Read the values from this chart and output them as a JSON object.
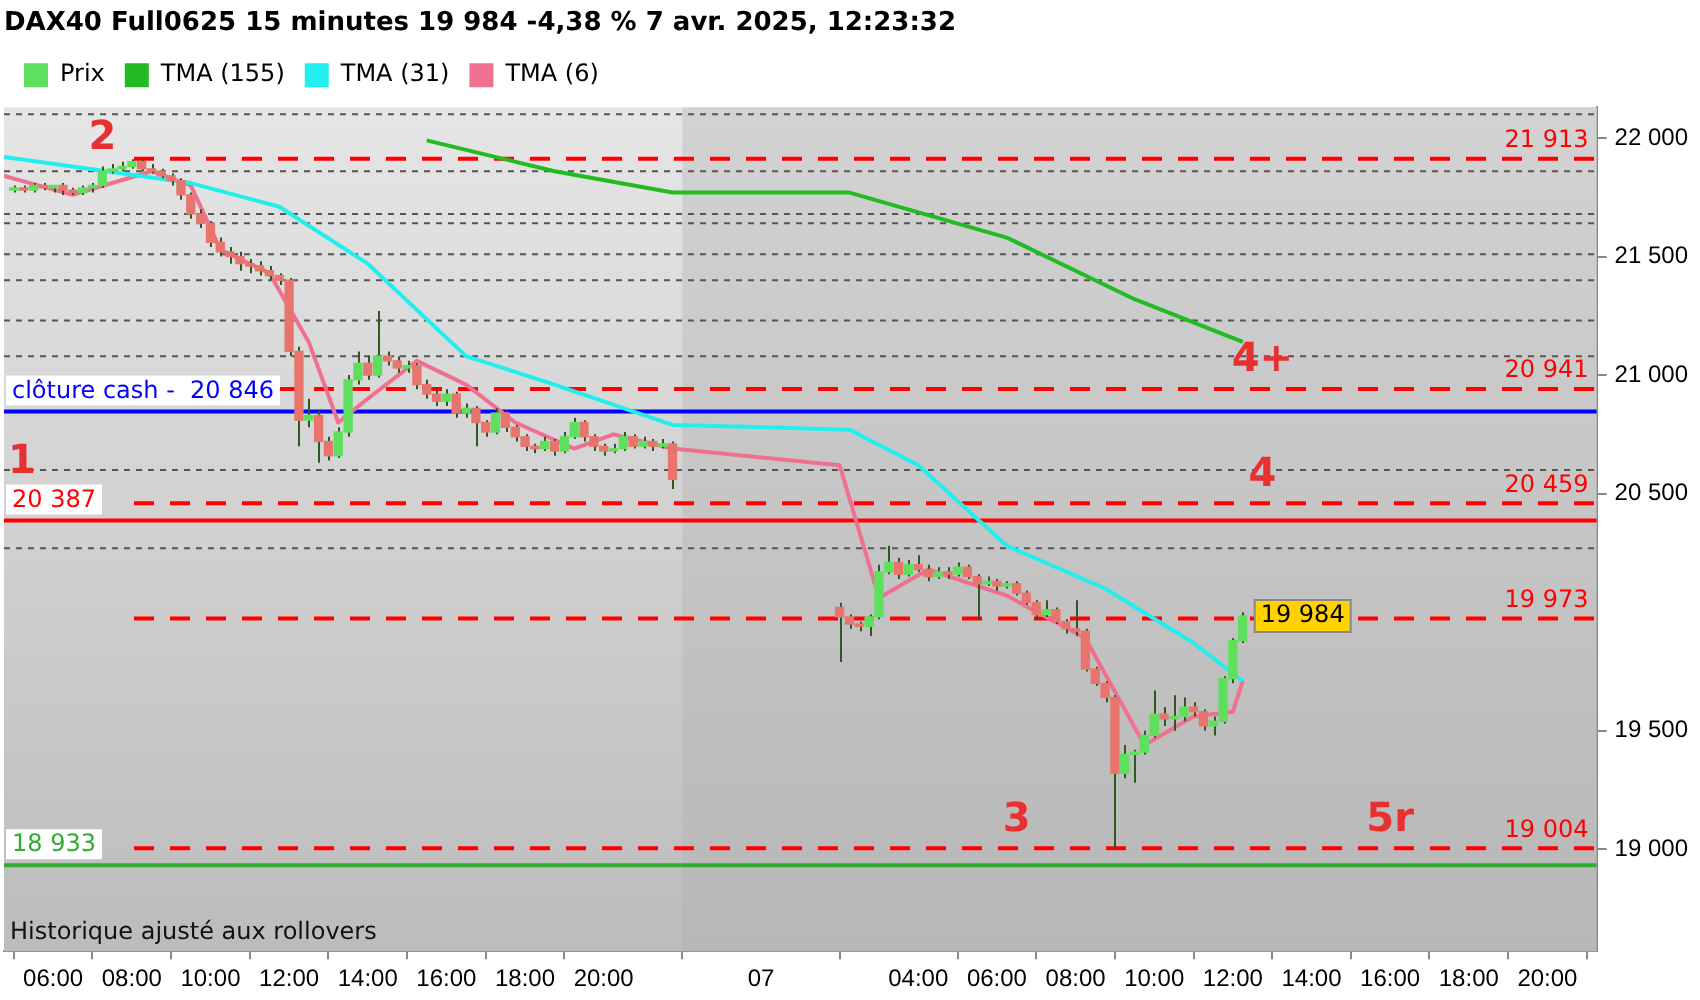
{
  "chart_data": {
    "type": "candlestick",
    "title": "DAX40 Full0625 15 minutes 19 984 -4,38 % 7 avr. 2025, 12:23:32",
    "legend": "top left",
    "marker": "none",
    "xlim": [
      "2025-04-06T04:45",
      "2025-04-07T21:15"
    ],
    "xticks": [
      {
        "value": "2025-04-06T06:00",
        "label": "06:00"
      },
      {
        "value": "2025-04-06T08:00",
        "label": "08:00"
      },
      {
        "value": "2025-04-06T10:00",
        "label": "10:00"
      },
      {
        "value": "2025-04-06T12:00",
        "label": "12:00"
      },
      {
        "value": "2025-04-06T14:00",
        "label": "14:00"
      },
      {
        "value": "2025-04-06T16:00",
        "label": "16:00"
      },
      {
        "value": "2025-04-06T18:00",
        "label": "18:00"
      },
      {
        "value": "2025-04-06T20:00",
        "label": "20:00"
      },
      {
        "value": "2025-04-07T00:00",
        "label": "07"
      },
      {
        "value": "2025-04-07T04:00",
        "label": "04:00"
      },
      {
        "value": "2025-04-07T06:00",
        "label": "06:00"
      },
      {
        "value": "2025-04-07T08:00",
        "label": "08:00"
      },
      {
        "value": "2025-04-07T10:00",
        "label": "10:00"
      },
      {
        "value": "2025-04-07T12:00",
        "label": "12:00"
      },
      {
        "value": "2025-04-07T14:00",
        "label": "14:00"
      },
      {
        "value": "2025-04-07T16:00",
        "label": "16:00"
      },
      {
        "value": "2025-04-07T18:00",
        "label": "18:00"
      },
      {
        "value": "2025-04-07T20:00",
        "label": "20:00"
      }
    ],
    "ylim": [
      18570,
      22130
    ],
    "yticks": [
      {
        "value": 19000,
        "label": "19 000"
      },
      {
        "value": 19500,
        "label": "19 500"
      },
      {
        "value": 20500,
        "label": "20 500"
      },
      {
        "value": 21000,
        "label": "21 000"
      },
      {
        "value": 21500,
        "label": "21 500"
      },
      {
        "value": 22000,
        "label": "22 000"
      }
    ],
    "bands": [
      {
        "axis": "x",
        "from": "2025-04-06T22:00",
        "to": "2025-04-07T21:15",
        "color": "#b0b0b0"
      }
    ],
    "ref_lines": [
      {
        "axis": "y",
        "value": 21913,
        "label": "21 913",
        "color": "#ff0000",
        "line_style": "dashed"
      },
      {
        "axis": "y",
        "value": 20941,
        "label": "20 941",
        "color": "#ff0000",
        "line_style": "dashed"
      },
      {
        "axis": "y",
        "value": 20459,
        "label": "20 459",
        "color": "#ff0000",
        "line_style": "dashed"
      },
      {
        "axis": "y",
        "value": 19973,
        "label": "19 973",
        "color": "#ff0000",
        "line_style": "dashed"
      },
      {
        "axis": "y",
        "value": 19004,
        "label": "19 004",
        "color": "#ff0000",
        "line_style": "dashed"
      },
      {
        "axis": "y",
        "value": 20387,
        "label": "20 387",
        "color": "#ff0000",
        "line_style": "solid"
      },
      {
        "axis": "y",
        "value": 18933,
        "label": "18 933",
        "color": "#33aa33",
        "line_style": "solid"
      },
      {
        "axis": "y",
        "value": 20846,
        "label": "clôture cash -  20 846",
        "color": "#0000ff",
        "line_style": "solid"
      },
      {
        "axis": "y",
        "value": 22100,
        "color": "#555555",
        "line_style": "dotted"
      },
      {
        "axis": "y",
        "value": 21860,
        "color": "#555555",
        "line_style": "dotted"
      },
      {
        "axis": "y",
        "value": 21680,
        "color": "#555555",
        "line_style": "dotted"
      },
      {
        "axis": "y",
        "value": 21640,
        "color": "#555555",
        "line_style": "dotted"
      },
      {
        "axis": "y",
        "value": 21510,
        "color": "#555555",
        "line_style": "dotted"
      },
      {
        "axis": "y",
        "value": 21400,
        "color": "#555555",
        "line_style": "dotted"
      },
      {
        "axis": "y",
        "value": 21230,
        "color": "#555555",
        "line_style": "dotted"
      },
      {
        "axis": "y",
        "value": 21080,
        "color": "#555555",
        "line_style": "dotted"
      },
      {
        "axis": "y",
        "value": 20600,
        "color": "#555555",
        "line_style": "dotted"
      },
      {
        "axis": "y",
        "value": 20270,
        "color": "#555555",
        "line_style": "dotted"
      }
    ],
    "annotations": [
      {
        "text": "1",
        "x": "2025-04-06T05:00",
        "y": 20387
      },
      {
        "text": "2",
        "x": "2025-04-06T07:15",
        "y": 21880
      },
      {
        "text": "3",
        "x": "2025-04-07T06:30",
        "y": 19004
      },
      {
        "text": "4",
        "x": "2025-04-07T12:45",
        "y": 20459
      },
      {
        "text": "4+",
        "x": "2025-04-07T12:45",
        "y": 20941
      },
      {
        "text": "5r",
        "x": "2025-04-07T16:00",
        "y": 19004
      },
      {
        "text": "19 984",
        "x": "2025-04-07T12:15",
        "y": 19984
      },
      "Historique ajusté aux rollovers"
    ],
    "series": [
      {
        "name": "Prix",
        "x": [
          "2025-04-06T05:00",
          "2025-04-06T05:15",
          "2025-04-06T05:30",
          "2025-04-06T05:45",
          "2025-04-06T06:00",
          "2025-04-06T06:15",
          "2025-04-06T06:30",
          "2025-04-06T06:45",
          "2025-04-06T07:00",
          "2025-04-06T07:15",
          "2025-04-06T07:30",
          "2025-04-06T07:45",
          "2025-04-06T08:00",
          "2025-04-06T08:15",
          "2025-04-06T08:30",
          "2025-04-06T08:45",
          "2025-04-06T09:00",
          "2025-04-06T09:15",
          "2025-04-06T09:30",
          "2025-04-06T09:45",
          "2025-04-06T10:00",
          "2025-04-06T10:15",
          "2025-04-06T10:30",
          "2025-04-06T10:45",
          "2025-04-06T11:00",
          "2025-04-06T11:15",
          "2025-04-06T11:30",
          "2025-04-06T11:45",
          "2025-04-06T12:00",
          "2025-04-06T12:15",
          "2025-04-06T12:30",
          "2025-04-06T12:45",
          "2025-04-06T13:00",
          "2025-04-06T13:15",
          "2025-04-06T13:30",
          "2025-04-06T13:45",
          "2025-04-06T14:00",
          "2025-04-06T14:15",
          "2025-04-06T14:30",
          "2025-04-06T14:45",
          "2025-04-06T15:00",
          "2025-04-06T15:15",
          "2025-04-06T15:30",
          "2025-04-06T15:45",
          "2025-04-06T16:00",
          "2025-04-06T16:15",
          "2025-04-06T16:30",
          "2025-04-06T16:45",
          "2025-04-06T17:00",
          "2025-04-06T17:15",
          "2025-04-06T17:30",
          "2025-04-06T17:45",
          "2025-04-06T18:00",
          "2025-04-06T18:15",
          "2025-04-06T18:30",
          "2025-04-06T18:45",
          "2025-04-06T19:00",
          "2025-04-06T19:15",
          "2025-04-06T19:30",
          "2025-04-06T19:45",
          "2025-04-06T20:00",
          "2025-04-06T20:15",
          "2025-04-06T20:30",
          "2025-04-06T20:45",
          "2025-04-06T21:00",
          "2025-04-06T21:15",
          "2025-04-06T21:30",
          "2025-04-06T21:45",
          "2025-04-07T02:00",
          "2025-04-07T02:15",
          "2025-04-07T02:30",
          "2025-04-07T02:45",
          "2025-04-07T03:00",
          "2025-04-07T03:15",
          "2025-04-07T03:30",
          "2025-04-07T03:45",
          "2025-04-07T04:00",
          "2025-04-07T04:15",
          "2025-04-07T04:30",
          "2025-04-07T04:45",
          "2025-04-07T05:00",
          "2025-04-07T05:15",
          "2025-04-07T05:30",
          "2025-04-07T05:45",
          "2025-04-07T06:00",
          "2025-04-07T06:15",
          "2025-04-07T06:30",
          "2025-04-07T06:45",
          "2025-04-07T07:00",
          "2025-04-07T07:15",
          "2025-04-07T07:30",
          "2025-04-07T07:45",
          "2025-04-07T08:00",
          "2025-04-07T08:15",
          "2025-04-07T08:30",
          "2025-04-07T08:45",
          "2025-04-07T09:00",
          "2025-04-07T09:15",
          "2025-04-07T09:30",
          "2025-04-07T09:45",
          "2025-04-07T10:00",
          "2025-04-07T10:15",
          "2025-04-07T10:30",
          "2025-04-07T10:45",
          "2025-04-07T11:00",
          "2025-04-07T11:15",
          "2025-04-07T11:30",
          "2025-04-07T11:45",
          "2025-04-07T12:00",
          "2025-04-07T12:15"
        ],
        "ohlc": [
          [
            21780,
            21800,
            21770,
            21790
          ],
          [
            21790,
            21800,
            21770,
            21780
          ],
          [
            21780,
            21810,
            21770,
            21800
          ],
          [
            21800,
            21810,
            21780,
            21790
          ],
          [
            21790,
            21800,
            21770,
            21800
          ],
          [
            21800,
            21810,
            21760,
            21780
          ],
          [
            21780,
            21790,
            21760,
            21770
          ],
          [
            21770,
            21800,
            21760,
            21790
          ],
          [
            21790,
            21810,
            21770,
            21800
          ],
          [
            21800,
            21880,
            21790,
            21860
          ],
          [
            21860,
            21890,
            21850,
            21870
          ],
          [
            21870,
            21900,
            21860,
            21880
          ],
          [
            21880,
            21910,
            21870,
            21900
          ],
          [
            21900,
            21910,
            21860,
            21870
          ],
          [
            21870,
            21890,
            21850,
            21860
          ],
          [
            21860,
            21870,
            21830,
            21840
          ],
          [
            21840,
            21850,
            21800,
            21820
          ],
          [
            21820,
            21830,
            21740,
            21760
          ],
          [
            21760,
            21770,
            21660,
            21680
          ],
          [
            21680,
            21700,
            21620,
            21640
          ],
          [
            21640,
            21650,
            21540,
            21560
          ],
          [
            21560,
            21580,
            21500,
            21520
          ],
          [
            21520,
            21540,
            21470,
            21500
          ],
          [
            21500,
            21520,
            21440,
            21470
          ],
          [
            21470,
            21490,
            21430,
            21460
          ],
          [
            21460,
            21480,
            21420,
            21440
          ],
          [
            21440,
            21460,
            21400,
            21420
          ],
          [
            21420,
            21430,
            21380,
            21400
          ],
          [
            21400,
            21410,
            21080,
            21100
          ],
          [
            21100,
            21120,
            20700,
            20810
          ],
          [
            20810,
            20900,
            20780,
            20830
          ],
          [
            20830,
            20850,
            20630,
            20720
          ],
          [
            20720,
            20740,
            20640,
            20660
          ],
          [
            20660,
            20780,
            20650,
            20760
          ],
          [
            20760,
            21000,
            20740,
            20980
          ],
          [
            20980,
            21100,
            20960,
            21050
          ],
          [
            21050,
            21080,
            20980,
            21000
          ],
          [
            21000,
            21270,
            20990,
            21080
          ],
          [
            21080,
            21100,
            21040,
            21060
          ],
          [
            21060,
            21080,
            21010,
            21030
          ],
          [
            21030,
            21060,
            21010,
            21040
          ],
          [
            21040,
            21050,
            20940,
            20960
          ],
          [
            20960,
            20980,
            20900,
            20920
          ],
          [
            20920,
            20940,
            20870,
            20890
          ],
          [
            20890,
            20940,
            20870,
            20920
          ],
          [
            20920,
            20930,
            20820,
            20840
          ],
          [
            20840,
            20880,
            20820,
            20860
          ],
          [
            20860,
            20870,
            20700,
            20800
          ],
          [
            20800,
            20810,
            20740,
            20760
          ],
          [
            20760,
            20860,
            20750,
            20840
          ],
          [
            20840,
            20850,
            20760,
            20780
          ],
          [
            20780,
            20790,
            20720,
            20740
          ],
          [
            20740,
            20750,
            20680,
            20700
          ],
          [
            20700,
            20710,
            20670,
            20690
          ],
          [
            20690,
            20740,
            20680,
            20720
          ],
          [
            20720,
            20730,
            20660,
            20680
          ],
          [
            20680,
            20760,
            20670,
            20740
          ],
          [
            20740,
            20820,
            20730,
            20800
          ],
          [
            20800,
            20810,
            20720,
            20740
          ],
          [
            20740,
            20750,
            20680,
            20700
          ],
          [
            20700,
            20710,
            20660,
            20680
          ],
          [
            20680,
            20710,
            20670,
            20690
          ],
          [
            20690,
            20760,
            20680,
            20740
          ],
          [
            20740,
            20750,
            20690,
            20700
          ],
          [
            20700,
            20740,
            20690,
            20720
          ],
          [
            20720,
            20730,
            20680,
            20700
          ],
          [
            20700,
            20730,
            20690,
            20710
          ],
          [
            20710,
            20720,
            20520,
            20560
          ],
          [
            20020,
            20040,
            19790,
            19980
          ],
          [
            19980,
            19990,
            19930,
            19950
          ],
          [
            19950,
            19960,
            19920,
            19940
          ],
          [
            19940,
            19990,
            19900,
            19980
          ],
          [
            19980,
            20200,
            19970,
            20170
          ],
          [
            20170,
            20280,
            20160,
            20210
          ],
          [
            20210,
            20230,
            20140,
            20160
          ],
          [
            20160,
            20220,
            20150,
            20200
          ],
          [
            20200,
            20240,
            20170,
            20180
          ],
          [
            20180,
            20200,
            20130,
            20150
          ],
          [
            20150,
            20190,
            20140,
            20170
          ],
          [
            20170,
            20190,
            20140,
            20160
          ],
          [
            20160,
            20210,
            20150,
            20190
          ],
          [
            20190,
            20200,
            20140,
            20150
          ],
          [
            20150,
            20160,
            19970,
            20120
          ],
          [
            20120,
            20150,
            20110,
            20130
          ],
          [
            20130,
            20140,
            20090,
            20110
          ],
          [
            20110,
            20130,
            20100,
            20120
          ],
          [
            20120,
            20130,
            20070,
            20080
          ],
          [
            20080,
            20090,
            20030,
            20040
          ],
          [
            20040,
            20050,
            19970,
            19990
          ],
          [
            19990,
            20050,
            19980,
            20010
          ],
          [
            20010,
            20020,
            19950,
            19960
          ],
          [
            19960,
            19970,
            19910,
            19930
          ],
          [
            19930,
            20050,
            19900,
            19920
          ],
          [
            19920,
            19930,
            19750,
            19760
          ],
          [
            19760,
            19770,
            19690,
            19700
          ],
          [
            19700,
            19710,
            19620,
            19640
          ],
          [
            19640,
            19650,
            19004,
            19320
          ],
          [
            19320,
            19440,
            19300,
            19400
          ],
          [
            19400,
            19420,
            19280,
            19410
          ],
          [
            19410,
            19500,
            19400,
            19480
          ],
          [
            19480,
            19670,
            19470,
            19570
          ],
          [
            19570,
            19600,
            19520,
            19550
          ],
          [
            19550,
            19650,
            19500,
            19560
          ],
          [
            19560,
            19640,
            19540,
            19600
          ],
          [
            19600,
            19620,
            19560,
            19580
          ],
          [
            19580,
            19590,
            19500,
            19520
          ],
          [
            19520,
            19560,
            19480,
            19540
          ],
          [
            19540,
            19730,
            19530,
            19720
          ],
          [
            19720,
            19890,
            19700,
            19880
          ],
          [
            19880,
            20000,
            19870,
            19984
          ]
        ],
        "colors": [
          "#5ee05e",
          "#e8756d",
          "#5ee05e",
          "#e8756d",
          "#5ee05e",
          "#e8756d",
          "#e8756d",
          "#5ee05e",
          "#5ee05e",
          "#5ee05e",
          "#5ee05e",
          "#5ee05e",
          "#5ee05e",
          "#e8756d",
          "#e8756d",
          "#e8756d",
          "#e8756d",
          "#e8756d",
          "#e8756d",
          "#e8756d",
          "#e8756d",
          "#e8756d",
          "#e8756d",
          "#e8756d",
          "#e8756d",
          "#e8756d",
          "#e8756d",
          "#e8756d",
          "#e8756d",
          "#e8756d",
          "#5ee05e",
          "#e8756d",
          "#e8756d",
          "#5ee05e",
          "#5ee05e",
          "#5ee05e",
          "#e8756d",
          "#5ee05e",
          "#e8756d",
          "#e8756d",
          "#5ee05e",
          "#e8756d",
          "#e8756d",
          "#e8756d",
          "#5ee05e",
          "#e8756d",
          "#5ee05e",
          "#e8756d",
          "#e8756d",
          "#5ee05e",
          "#e8756d",
          "#e8756d",
          "#e8756d",
          "#e8756d",
          "#5ee05e",
          "#e8756d",
          "#5ee05e",
          "#5ee05e",
          "#e8756d",
          "#e8756d",
          "#e8756d",
          "#5ee05e",
          "#5ee05e",
          "#e8756d",
          "#5ee05e",
          "#e8756d",
          "#5ee05e",
          "#e8756d",
          "#e8756d",
          "#e8756d",
          "#e8756d",
          "#5ee05e",
          "#5ee05e",
          "#5ee05e",
          "#e8756d",
          "#5ee05e",
          "#e8756d",
          "#e8756d",
          "#5ee05e",
          "#e8756d",
          "#5ee05e",
          "#e8756d",
          "#e8756d",
          "#5ee05e",
          "#e8756d",
          "#5ee05e",
          "#e8756d",
          "#e8756d",
          "#e8756d",
          "#5ee05e",
          "#e8756d",
          "#e8756d",
          "#e8756d",
          "#e8756d",
          "#e8756d",
          "#e8756d",
          "#e8756d",
          "#5ee05e",
          "#5ee05e",
          "#5ee05e",
          "#5ee05e",
          "#e8756d",
          "#5ee05e",
          "#5ee05e",
          "#e8756d",
          "#e8756d",
          "#5ee05e",
          "#5ee05e",
          "#5ee05e",
          "#5ee05e"
        ]
      },
      {
        "type": "line",
        "name": "TMA (155)",
        "color": "#22bb22",
        "x": [
          "2025-04-06T15:30",
          "2025-04-06T18:45",
          "2025-04-06T21:45",
          "2025-04-07T02:15",
          "2025-04-07T06:15",
          "2025-04-07T09:30",
          "2025-04-07T12:15"
        ],
        "values": [
          21990,
          21860,
          21770,
          21770,
          21580,
          21320,
          21140
        ]
      },
      {
        "type": "line",
        "name": "TMA (31)",
        "color": "#22eeee",
        "x": [
          "2025-04-06T04:45",
          "2025-04-06T09:30",
          "2025-04-06T11:45",
          "2025-04-06T14:00",
          "2025-04-06T16:30",
          "2025-04-06T18:45",
          "2025-04-06T21:45",
          "2025-04-07T02:15",
          "2025-04-07T04:00",
          "2025-04-07T06:15",
          "2025-04-07T08:45",
          "2025-04-07T11:00",
          "2025-04-07T12:15"
        ],
        "values": [
          21920,
          21810,
          21710,
          21470,
          21080,
          20960,
          20790,
          20770,
          20620,
          20280,
          20100,
          19870,
          19710
        ]
      },
      {
        "type": "line",
        "name": "TMA (6)",
        "color": "#f07090",
        "x": [
          "2025-04-06T04:45",
          "2025-04-06T06:30",
          "2025-04-06T08:30",
          "2025-04-06T09:30",
          "2025-04-06T10:15",
          "2025-04-06T11:30",
          "2025-04-06T12:30",
          "2025-04-06T13:15",
          "2025-04-06T14:00",
          "2025-04-06T15:15",
          "2025-04-06T16:30",
          "2025-04-06T17:45",
          "2025-04-06T19:15",
          "2025-04-06T20:15",
          "2025-04-06T21:45",
          "2025-04-07T02:00",
          "2025-04-07T03:00",
          "2025-04-07T04:15",
          "2025-04-07T06:15",
          "2025-04-07T08:15",
          "2025-04-07T09:45",
          "2025-04-07T11:00",
          "2025-04-07T12:00",
          "2025-04-07T12:15"
        ],
        "values": [
          21840,
          21760,
          21860,
          21800,
          21530,
          21430,
          21140,
          20800,
          20900,
          21060,
          20960,
          20800,
          20690,
          20750,
          20690,
          20620,
          20060,
          20180,
          20070,
          19890,
          19440,
          19560,
          19580,
          19710
        ]
      }
    ]
  }
}
